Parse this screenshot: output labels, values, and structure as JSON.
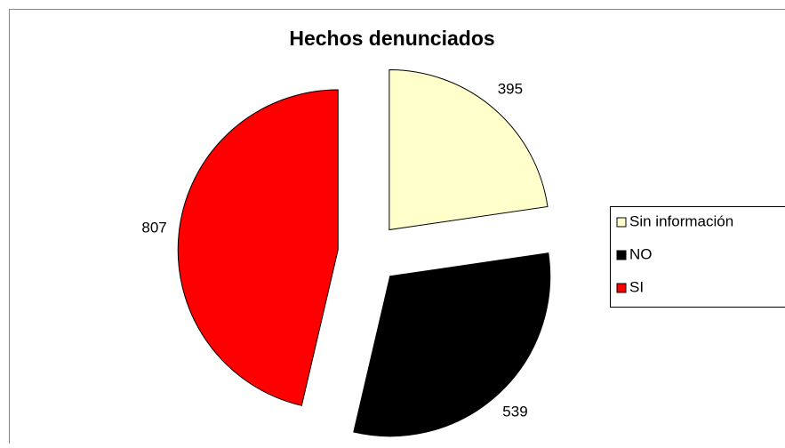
{
  "chart_data": {
    "type": "pie",
    "title": "Hechos denunciados",
    "categories": [
      "Sin información",
      "NO",
      "SI"
    ],
    "values": [
      395,
      539,
      807
    ],
    "colors": [
      "#ffffcc",
      "#000000",
      "#ff0000"
    ],
    "legend": "right"
  }
}
